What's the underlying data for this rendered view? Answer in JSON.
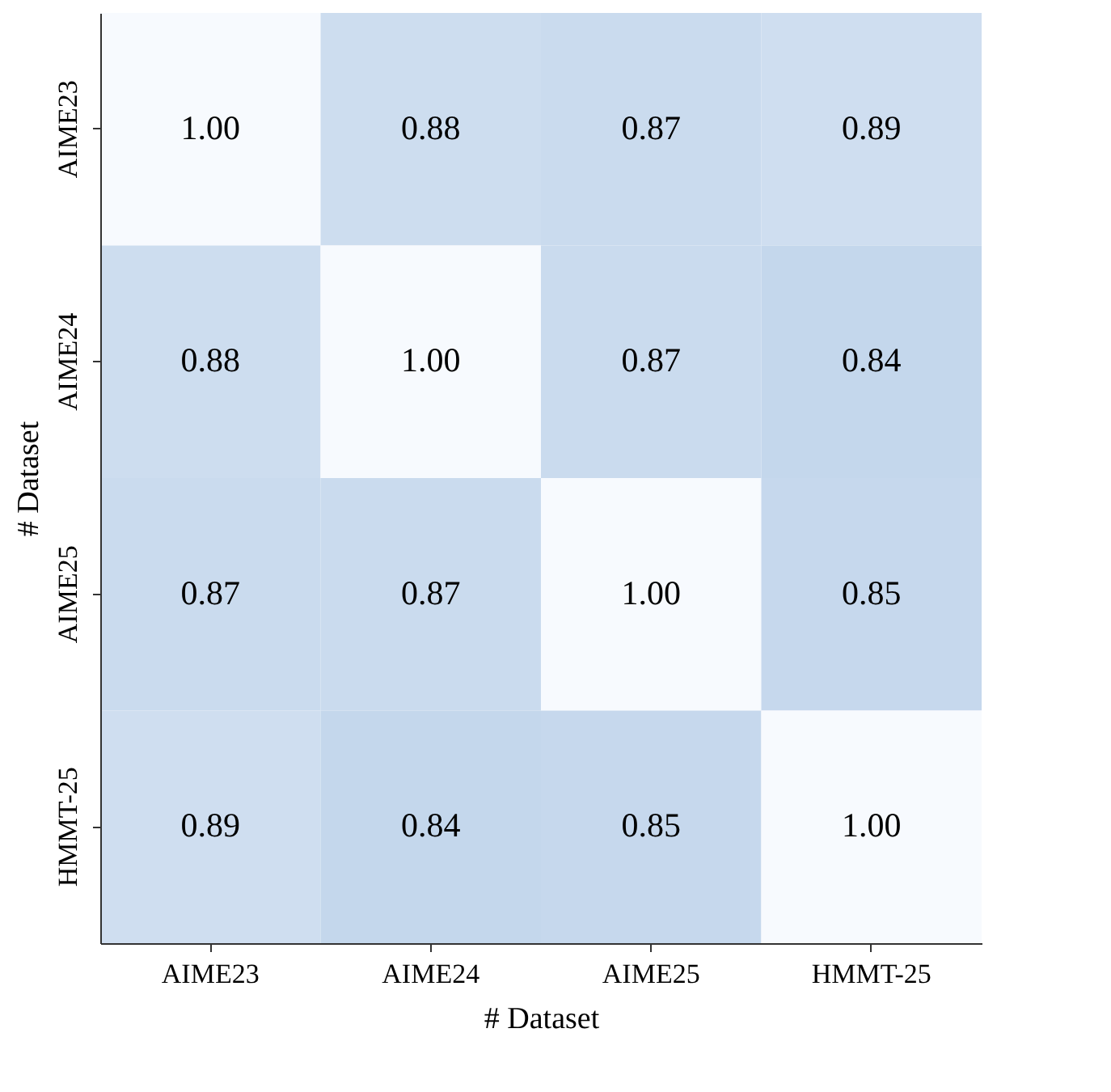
{
  "chart_data": {
    "type": "heatmap",
    "xlabel": "# Dataset",
    "ylabel": "# Dataset",
    "data_labels": true,
    "categories": [
      "AIME23",
      "AIME24",
      "AIME25",
      "HMMT-25"
    ],
    "y_categories": [
      "AIME23",
      "AIME24",
      "AIME25",
      "HMMT-25"
    ],
    "cells": [
      [
        1.0,
        0.88,
        0.87,
        0.89
      ],
      [
        0.88,
        1.0,
        0.87,
        0.84
      ],
      [
        0.87,
        0.87,
        1.0,
        0.85
      ],
      [
        0.89,
        0.84,
        0.85,
        1.0
      ]
    ],
    "cell_labels": [
      [
        "1.00",
        "0.88",
        "0.87",
        "0.89"
      ],
      [
        "0.88",
        "1.00",
        "0.87",
        "0.84"
      ],
      [
        "0.87",
        "0.87",
        "1.00",
        "0.85"
      ],
      [
        "0.89",
        "0.84",
        "0.85",
        "1.00"
      ]
    ]
  }
}
